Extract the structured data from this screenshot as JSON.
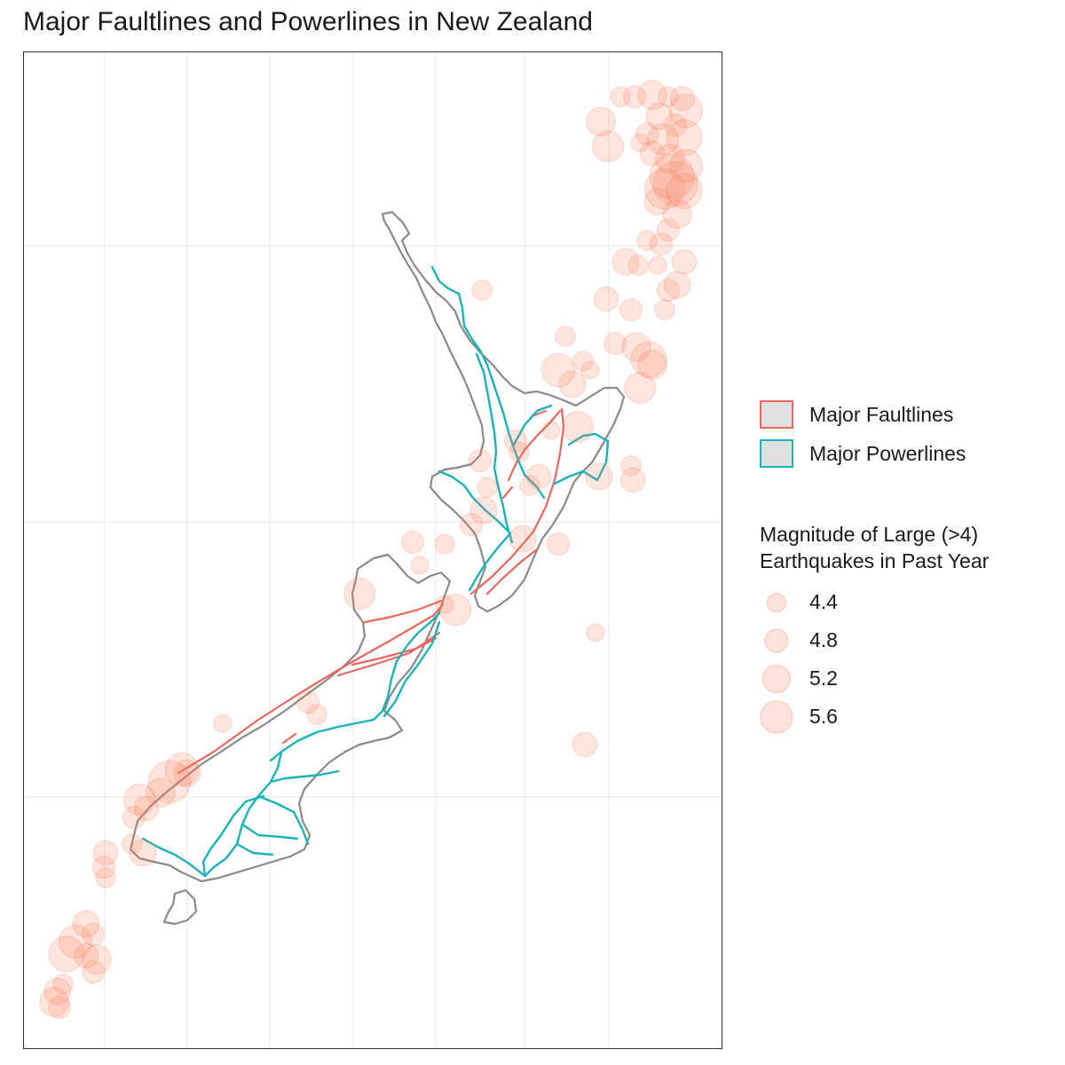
{
  "title": "Major Faultlines and Powerlines in New Zealand",
  "colors": {
    "faultline": "#e8675e",
    "powerline": "#1bb3b9",
    "coastline": "#8a8a8a",
    "quake": "#fa7f58",
    "legend_key_fill": "#e0e0e0",
    "grid": "#ebebeb"
  },
  "legend": {
    "lines": [
      {
        "label": "Major Faultlines",
        "color": "#e8675e"
      },
      {
        "label": "Major Powerlines",
        "color": "#1bb3b9"
      }
    ],
    "size_title_line1": "Magnitude of Large (>4)",
    "size_title_line2": "Earthquakes in Past Year",
    "sizes": [
      {
        "label": "4.4",
        "magnitude": 4.4
      },
      {
        "label": "4.8",
        "magnitude": 4.8
      },
      {
        "label": "5.2",
        "magnitude": 5.2
      },
      {
        "label": "5.6",
        "magnitude": 5.6
      }
    ]
  }
}
